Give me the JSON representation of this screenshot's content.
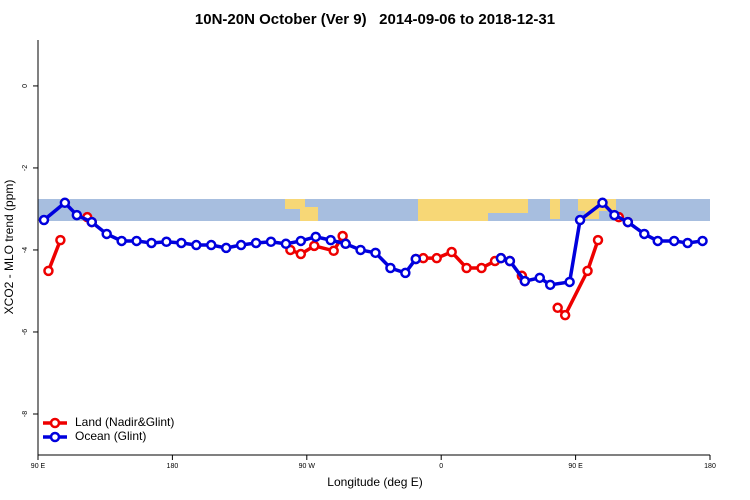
{
  "chart_data": {
    "type": "line",
    "title": "10N-20N October (Ver 9)   2014-09-06 to 2018-12-31",
    "x_label": "Longitude (deg E)",
    "y_label": "XCO2 - MLO trend (ppm)",
    "xlim": [
      90,
      540
    ],
    "xticks": [
      {
        "value": 90,
        "label": "90 E"
      },
      {
        "value": 180,
        "label": "180"
      },
      {
        "value": 270,
        "label": "90 W"
      },
      {
        "value": 360,
        "label": "0"
      },
      {
        "value": 450,
        "label": "90 E"
      },
      {
        "value": 540,
        "label": "180"
      }
    ],
    "ylim": [
      -9,
      1.12
    ],
    "yticks": [
      0,
      -2,
      -4,
      -6,
      -8
    ],
    "legend": "bottom-left",
    "series": [
      {
        "name": "Land (Nadir&Glint)",
        "color": "#ee0000",
        "x": [
          97,
          105,
          null,
          123,
          126,
          null,
          259,
          266,
          275,
          288,
          294,
          296,
          null,
          343,
          348,
          357,
          367,
          377,
          387,
          396,
          400,
          406,
          null,
          414,
          416,
          null,
          438,
          443,
          458,
          465,
          null,
          479,
          485
        ],
        "values": [
          -4.51,
          -3.76,
          null,
          -3.2,
          -3.32,
          null,
          -4.0,
          -4.1,
          -3.9,
          -4.02,
          -3.66,
          -3.85,
          null,
          -4.22,
          -4.2,
          -4.2,
          -4.05,
          -4.44,
          -4.44,
          -4.27,
          -4.2,
          -4.27,
          null,
          -4.63,
          -4.76,
          null,
          -5.41,
          -5.59,
          -4.51,
          -3.76,
          null,
          -3.2,
          -3.32
        ]
      },
      {
        "name": "Ocean (Glint)",
        "color": "#0000dd",
        "x": [
          94,
          108,
          116,
          126,
          136,
          146,
          156,
          166,
          176,
          186,
          196,
          206,
          216,
          226,
          236,
          246,
          256,
          266,
          276,
          286,
          296,
          306,
          316,
          326,
          336,
          343,
          null,
          400,
          406,
          416,
          426,
          433,
          446,
          453,
          468,
          476,
          485,
          496,
          505,
          516,
          525,
          535
        ],
        "values": [
          -3.27,
          -2.85,
          -3.15,
          -3.32,
          -3.61,
          -3.78,
          -3.78,
          -3.83,
          -3.8,
          -3.83,
          -3.88,
          -3.88,
          -3.95,
          -3.88,
          -3.83,
          -3.8,
          -3.85,
          -3.78,
          -3.68,
          -3.76,
          -3.85,
          -4.0,
          -4.07,
          -4.44,
          -4.56,
          -4.22,
          null,
          -4.2,
          -4.27,
          -4.76,
          -4.68,
          -4.85,
          -4.78,
          -3.27,
          -2.85,
          -3.15,
          -3.32,
          -3.61,
          -3.78,
          -3.78,
          -3.83,
          -3.78
        ]
      }
    ]
  }
}
